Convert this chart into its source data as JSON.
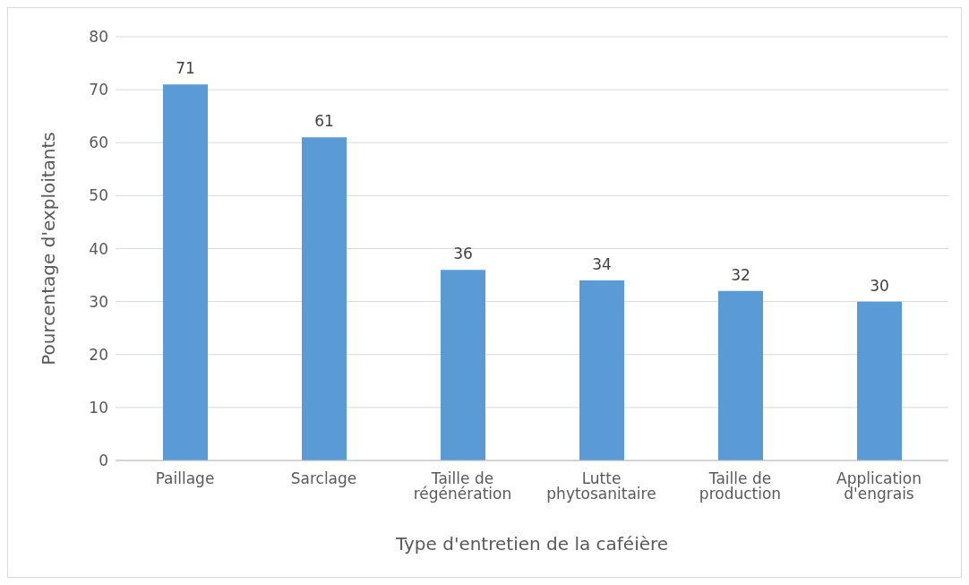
{
  "chart_data": {
    "type": "bar",
    "xlabel": "Type d'entretien de la caféière",
    "ylabel": "Pourcentage d'exploitants",
    "categories": [
      "Paillage",
      "Sarclage",
      "Taille de régénération",
      "Lutte phytosanitaire",
      "Taille de production",
      "Application d'engrais"
    ],
    "values": [
      71,
      61,
      36,
      34,
      32,
      30
    ],
    "color": "#5b9bd5",
    "ylim": [
      0,
      80
    ],
    "yticks": [
      0,
      10,
      20,
      30,
      40,
      50,
      60,
      70,
      80
    ],
    "grid": "y",
    "data_labels": true,
    "legend": false
  }
}
